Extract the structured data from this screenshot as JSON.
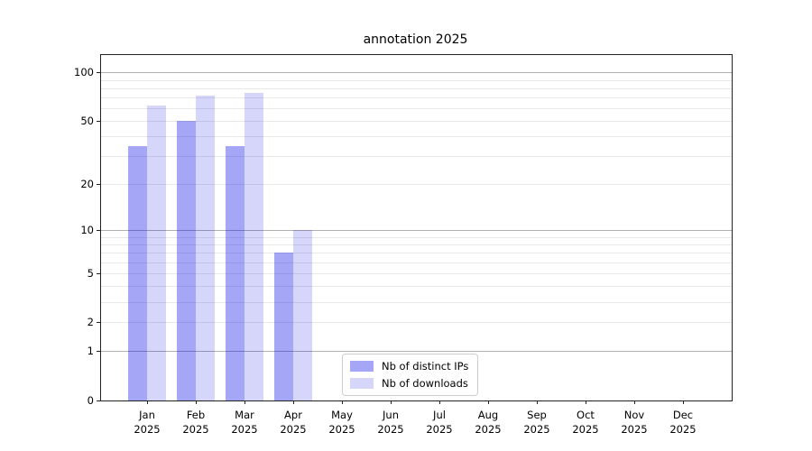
{
  "chart_data": {
    "type": "bar",
    "title": "annotation 2025",
    "categories": [
      "Jan",
      "Feb",
      "Mar",
      "Apr",
      "May",
      "Jun",
      "Jul",
      "Aug",
      "Sep",
      "Oct",
      "Nov",
      "Dec"
    ],
    "year": "2025",
    "series": [
      {
        "name": "Nb of distinct IPs",
        "color": "rgba(0,0,230,0.35)",
        "values": [
          35,
          50,
          35,
          7,
          0,
          0,
          0,
          0,
          0,
          0,
          0,
          0
        ]
      },
      {
        "name": "Nb of downloads",
        "color": "rgba(0,0,230,0.16)",
        "values": [
          62,
          72,
          75,
          10,
          0,
          0,
          0,
          0,
          0,
          0,
          0,
          0
        ]
      }
    ],
    "y_axis": {
      "scale": "log1p",
      "max": 128,
      "tick_labels": [
        100,
        50,
        20,
        10,
        5,
        2,
        1,
        0
      ],
      "major_gridlines": [
        100,
        10,
        1
      ],
      "minor_gridlines": [
        90,
        80,
        70,
        60,
        50,
        40,
        30,
        20,
        9,
        8,
        7,
        6,
        5,
        4,
        3,
        2
      ]
    },
    "grid": true,
    "legend_position": "lower-center",
    "colors": {
      "axis": "#222222",
      "major_grid": "#b0b0b0",
      "minor_grid": "#e8e8e8",
      "text": "#000000"
    }
  }
}
